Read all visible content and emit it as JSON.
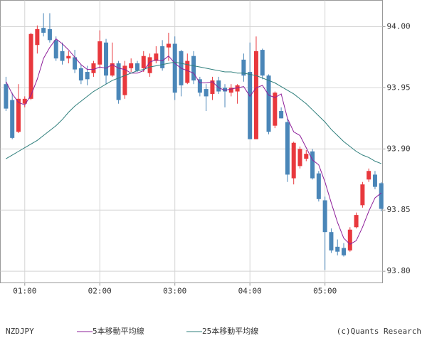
{
  "chart_data": {
    "type": "candlestick",
    "symbol": "NZDJPY",
    "copyright": "(c)Quants Research",
    "x": [
      45,
      50,
      55,
      60,
      65,
      70,
      75,
      80,
      85,
      90,
      95,
      100,
      105,
      110,
      115,
      120,
      125,
      130,
      135,
      140,
      145,
      150,
      155,
      160,
      165,
      170,
      175,
      180,
      185,
      190,
      195,
      200,
      205,
      210,
      215,
      220,
      225,
      230,
      235,
      240,
      245,
      250,
      255,
      260,
      265,
      270,
      275,
      280,
      285,
      290,
      295,
      300,
      305,
      310,
      315,
      320,
      325,
      330,
      335,
      340,
      345
    ],
    "open": [
      93.953,
      93.94,
      93.914,
      93.937,
      93.941,
      93.985,
      93.999,
      93.998,
      93.989,
      93.98,
      93.974,
      93.975,
      93.966,
      93.963,
      93.962,
      93.969,
      93.987,
      93.96,
      93.97,
      93.944,
      93.966,
      93.97,
      93.966,
      93.962,
      93.972,
      93.984,
      93.983,
      93.986,
      93.98,
      93.954,
      93.976,
      93.957,
      93.949,
      93.945,
      93.956,
      93.95,
      93.946,
      93.947,
      93.973,
      93.963,
      93.908,
      93.981,
      93.96,
      93.919,
      93.931,
      93.922,
      93.876,
      93.886,
      93.892,
      93.898,
      93.88,
      93.858,
      93.832,
      93.82,
      93.819,
      93.817,
      93.836,
      93.854,
      93.875,
      93.879,
      93.872
    ],
    "high": [
      93.959,
      93.946,
      93.953,
      93.943,
      93.995,
      94.001,
      94.011,
      94.011,
      93.992,
      93.987,
      93.98,
      93.981,
      93.969,
      93.968,
      93.972,
      93.997,
      93.99,
      93.987,
      93.972,
      93.972,
      93.974,
      93.972,
      93.98,
      93.978,
      93.984,
      93.989,
      93.995,
      93.992,
      93.981,
      93.978,
      93.98,
      93.959,
      93.953,
      93.959,
      93.959,
      93.953,
      93.953,
      93.953,
      93.978,
      93.987,
      93.992,
      93.982,
      93.961,
      93.947,
      93.934,
      93.925,
      93.906,
      93.902,
      93.899,
      93.9,
      93.882,
      93.861,
      93.835,
      93.826,
      93.823,
      93.836,
      93.848,
      93.873,
      93.884,
      93.882,
      93.873
    ],
    "low": [
      93.931,
      93.908,
      93.913,
      93.934,
      93.94,
      93.978,
      93.992,
      93.987,
      93.972,
      93.969,
      93.97,
      93.962,
      93.953,
      93.952,
      93.959,
      93.966,
      93.953,
      93.959,
      93.937,
      93.941,
      93.963,
      93.963,
      93.963,
      93.959,
      93.97,
      93.964,
      93.972,
      93.94,
      93.943,
      93.953,
      93.953,
      93.943,
      93.931,
      93.94,
      93.945,
      93.934,
      93.943,
      93.937,
      93.955,
      93.908,
      93.908,
      93.957,
      93.912,
      93.917,
      93.925,
      93.873,
      93.871,
      93.884,
      93.89,
      93.875,
      93.857,
      93.801,
      93.815,
      93.813,
      93.812,
      93.816,
      93.835,
      93.852,
      93.873,
      93.867,
      93.849
    ],
    "close": [
      93.933,
      93.909,
      93.941,
      93.941,
      93.994,
      93.998,
      93.995,
      93.989,
      93.974,
      93.972,
      93.976,
      93.965,
      93.956,
      93.957,
      93.97,
      93.988,
      93.96,
      93.97,
      93.94,
      93.968,
      93.97,
      93.964,
      93.976,
      93.975,
      93.978,
      93.966,
      93.986,
      93.946,
      93.952,
      93.972,
      93.956,
      93.946,
      93.943,
      93.956,
      93.947,
      93.947,
      93.95,
      93.952,
      93.96,
      93.908,
      93.98,
      93.96,
      93.914,
      93.946,
      93.925,
      93.879,
      93.905,
      93.9,
      93.896,
      93.876,
      93.859,
      93.832,
      93.817,
      93.816,
      93.813,
      93.834,
      93.846,
      93.871,
      93.882,
      93.869,
      93.851
    ],
    "up_color": "#e8383d",
    "down_color": "#4a86b8",
    "series": [
      {
        "name": "5本移動平均線",
        "color": "#8e1f9a",
        "values": [
          93.955,
          93.945,
          93.938,
          93.936,
          93.944,
          93.957,
          93.974,
          93.983,
          93.99,
          93.986,
          93.981,
          93.975,
          93.969,
          93.965,
          93.965,
          93.967,
          93.966,
          93.969,
          93.966,
          93.965,
          93.962,
          93.962,
          93.964,
          93.971,
          93.973,
          93.972,
          93.976,
          93.97,
          93.966,
          93.964,
          93.962,
          93.954,
          93.954,
          93.955,
          93.95,
          93.948,
          93.949,
          93.95,
          93.951,
          93.943,
          93.95,
          93.952,
          93.944,
          93.942,
          93.945,
          93.925,
          93.914,
          93.911,
          93.901,
          93.891,
          93.887,
          93.873,
          93.856,
          93.84,
          93.827,
          93.822,
          93.825,
          93.836,
          93.849,
          93.86,
          93.864
        ]
      },
      {
        "name": "25本移動平均線",
        "color": "#2f7f7c",
        "values": [
          93.892,
          93.895,
          93.898,
          93.901,
          93.904,
          93.907,
          93.911,
          93.915,
          93.919,
          93.924,
          93.93,
          93.935,
          93.939,
          93.943,
          93.947,
          93.95,
          93.953,
          93.956,
          93.958,
          93.96,
          93.962,
          93.964,
          93.965,
          93.967,
          93.968,
          93.969,
          93.97,
          93.971,
          93.97,
          93.969,
          93.968,
          93.967,
          93.966,
          93.965,
          93.964,
          93.963,
          93.963,
          93.962,
          93.962,
          93.961,
          93.96,
          93.958,
          93.956,
          93.954,
          93.951,
          93.948,
          93.945,
          93.941,
          93.937,
          93.932,
          93.927,
          93.922,
          93.916,
          93.911,
          93.906,
          93.902,
          93.898,
          93.895,
          93.893,
          93.89,
          93.888
        ]
      }
    ],
    "xlim": [
      40.5,
      346
    ],
    "xticks": [
      {
        "value": 60,
        "label": "01:00"
      },
      {
        "value": 120,
        "label": "02:00"
      },
      {
        "value": 180,
        "label": "03:00"
      },
      {
        "value": 240,
        "label": "04:00"
      },
      {
        "value": 300,
        "label": "05:00"
      }
    ],
    "ylim": [
      93.7905,
      94.0215
    ],
    "yticks": [
      {
        "value": 93.8,
        "label": "93.80"
      },
      {
        "value": 93.85,
        "label": "93.85"
      },
      {
        "value": 93.9,
        "label": "93.90"
      },
      {
        "value": 93.95,
        "label": "93.95"
      },
      {
        "value": 94,
        "label": "94.00"
      }
    ],
    "grid": true
  }
}
